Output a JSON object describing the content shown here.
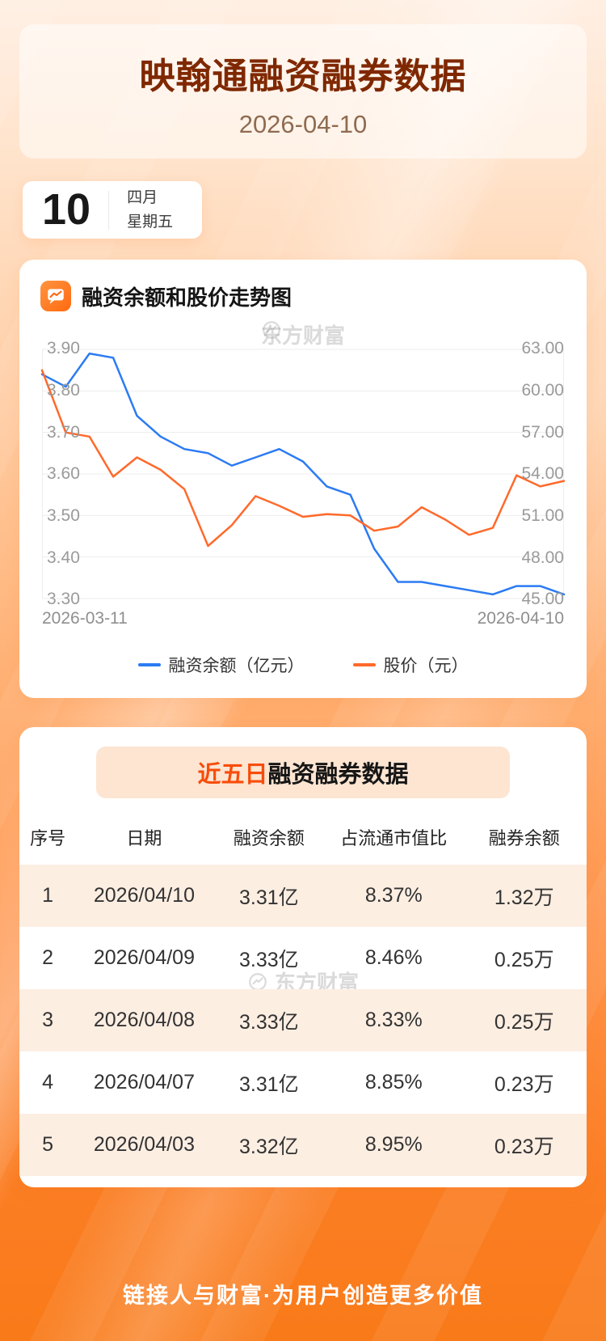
{
  "page": {
    "title": "映翰通融资融券数据",
    "date": "2026-04-10"
  },
  "calendar": {
    "day": "10",
    "month": "四月",
    "weekday": "星期五"
  },
  "chart_section": {
    "heading": "融资余额和股价走势图",
    "watermark": "东方财富"
  },
  "chart_data": {
    "type": "line",
    "x_start_label": "2026-03-11",
    "x_end_label": "2026-04-10",
    "grid": true,
    "legend_position": "bottom",
    "left_axis": {
      "ticks": [
        "3.90",
        "3.80",
        "3.70",
        "3.60",
        "3.50",
        "3.40",
        "3.30"
      ],
      "min": 3.3,
      "max": 3.9
    },
    "right_axis": {
      "ticks": [
        "63.00",
        "60.00",
        "57.00",
        "54.00",
        "51.00",
        "48.00",
        "45.00"
      ],
      "min": 45.0,
      "max": 63.0
    },
    "series": [
      {
        "name": "融资余额（亿元）",
        "color": "#2b7bf3",
        "axis": "left",
        "values": [
          3.84,
          3.81,
          3.89,
          3.88,
          3.74,
          3.69,
          3.66,
          3.65,
          3.62,
          3.64,
          3.66,
          3.63,
          3.57,
          3.55,
          3.42,
          3.34,
          3.34,
          3.33,
          3.32,
          3.31,
          3.33,
          3.33,
          3.31
        ]
      },
      {
        "name": "股价（元）",
        "color": "#ff6a2b",
        "axis": "right",
        "values": [
          61.5,
          57.0,
          56.7,
          53.8,
          55.2,
          54.3,
          52.9,
          48.8,
          50.3,
          52.4,
          51.7,
          50.9,
          51.1,
          51.0,
          49.9,
          50.2,
          51.6,
          50.7,
          49.6,
          50.1,
          53.9,
          53.1,
          53.5
        ]
      }
    ]
  },
  "table_section": {
    "heading_highlight": "近五日",
    "heading_rest": "融资融券数据",
    "watermark": "东方财富",
    "columns": [
      "序号",
      "日期",
      "融资余额",
      "占流通市值比",
      "融券余额"
    ],
    "rows": [
      [
        "1",
        "2026/04/10",
        "3.31亿",
        "8.37%",
        "1.32万"
      ],
      [
        "2",
        "2026/04/09",
        "3.33亿",
        "8.46%",
        "0.25万"
      ],
      [
        "3",
        "2026/04/08",
        "3.33亿",
        "8.33%",
        "0.25万"
      ],
      [
        "4",
        "2026/04/07",
        "3.31亿",
        "8.85%",
        "0.23万"
      ],
      [
        "5",
        "2026/04/03",
        "3.32亿",
        "8.95%",
        "0.23万"
      ]
    ]
  },
  "footer": {
    "text": "链接人与财富·为用户创造更多价值"
  },
  "colors": {
    "accent_orange": "#ff6a2b",
    "line_blue": "#2b7bf3",
    "title_brown": "#7f2800",
    "highlight_red": "#f84c0b",
    "row_alt_bg": "#fdeee2",
    "bg_bottom": "#f97a18"
  }
}
